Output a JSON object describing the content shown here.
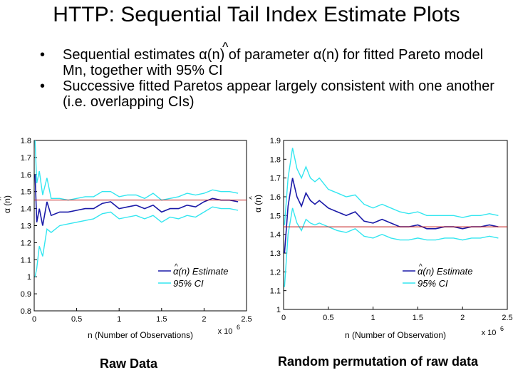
{
  "slide": {
    "title": "HTTP: Sequential Tail Index Estimate Plots",
    "bullets": [
      "Sequential estimates α(n) of parameter α(n) for fitted Pareto model Mn, together with 95% CI",
      "Successive fitted Paretos appear largely consistent with one another  (i.e. overlapping CIs)"
    ],
    "bullet_marker": "•",
    "hat_glyph": "^"
  },
  "captions": {
    "left": "Raw Data",
    "right": "Random permutation of raw data"
  },
  "colors": {
    "estimate": "#1a1aa8",
    "ci": "#33e6f0",
    "reference": "#c01818",
    "axis": "#000000"
  },
  "chart_data": [
    {
      "type": "line",
      "title": "",
      "xlabel": "n (Number of Observations)",
      "ylabel": "α (n)",
      "x_exponent_label": "x 10",
      "x_exponent": "6",
      "xlim": [
        0,
        2.5
      ],
      "ylim": [
        0.8,
        1.8
      ],
      "x_ticks": [
        "0",
        "0.5",
        "1",
        "1.5",
        "2",
        "2.5"
      ],
      "y_ticks": [
        "0.8",
        "0.9",
        "1",
        "1.1",
        "1.2",
        "1.3",
        "1.4",
        "1.5",
        "1.6",
        "1.7",
        "1.8"
      ],
      "reference_line": 1.45,
      "legend": {
        "position": "lower-right",
        "entries": [
          "α(n) Estimate",
          "95% CI"
        ]
      },
      "series": [
        {
          "name": "α(n) Estimate",
          "x": [
            0.01,
            0.03,
            0.06,
            0.1,
            0.15,
            0.2,
            0.3,
            0.4,
            0.5,
            0.6,
            0.7,
            0.8,
            0.9,
            1.0,
            1.1,
            1.2,
            1.3,
            1.4,
            1.5,
            1.6,
            1.7,
            1.8,
            1.9,
            2.0,
            2.1,
            2.2,
            2.3,
            2.4
          ],
          "y": [
            1.6,
            1.32,
            1.4,
            1.3,
            1.44,
            1.36,
            1.38,
            1.38,
            1.39,
            1.4,
            1.4,
            1.43,
            1.44,
            1.4,
            1.41,
            1.42,
            1.4,
            1.42,
            1.38,
            1.4,
            1.4,
            1.42,
            1.41,
            1.44,
            1.46,
            1.45,
            1.45,
            1.44
          ]
        },
        {
          "name": "95% CI",
          "x": [
            0.01,
            0.03,
            0.06,
            0.1,
            0.15,
            0.2,
            0.3,
            0.4,
            0.5,
            0.6,
            0.7,
            0.8,
            0.9,
            1.0,
            1.1,
            1.2,
            1.3,
            1.4,
            1.5,
            1.6,
            1.7,
            1.8,
            1.9,
            2.0,
            2.1,
            2.2,
            2.3,
            2.4
          ],
          "y": [
            1.8,
            1.55,
            1.62,
            1.48,
            1.58,
            1.46,
            1.46,
            1.45,
            1.46,
            1.47,
            1.47,
            1.5,
            1.5,
            1.47,
            1.48,
            1.48,
            1.46,
            1.49,
            1.45,
            1.46,
            1.47,
            1.49,
            1.48,
            1.49,
            1.51,
            1.5,
            1.5,
            1.49
          ]
        },
        {
          "name": "95% CI",
          "x": [
            0.01,
            0.03,
            0.06,
            0.1,
            0.15,
            0.2,
            0.3,
            0.4,
            0.5,
            0.6,
            0.7,
            0.8,
            0.9,
            1.0,
            1.1,
            1.2,
            1.3,
            1.4,
            1.5,
            1.6,
            1.7,
            1.8,
            1.9,
            2.0,
            2.1,
            2.2,
            2.3,
            2.4
          ],
          "y": [
            1.0,
            1.05,
            1.18,
            1.12,
            1.28,
            1.26,
            1.3,
            1.31,
            1.32,
            1.33,
            1.34,
            1.37,
            1.38,
            1.34,
            1.35,
            1.36,
            1.34,
            1.36,
            1.32,
            1.35,
            1.34,
            1.36,
            1.35,
            1.38,
            1.41,
            1.4,
            1.4,
            1.39
          ]
        }
      ]
    },
    {
      "type": "line",
      "title": "",
      "xlabel": "n (Number of Observation)",
      "ylabel": "α (n)",
      "x_exponent_label": "x 10",
      "x_exponent": "6",
      "xlim": [
        0,
        2.5
      ],
      "ylim": [
        1,
        1.9
      ],
      "x_ticks": [
        "0",
        "0.5",
        "1",
        "1.5",
        "2",
        "2.5"
      ],
      "y_ticks": [
        "1",
        "1.1",
        "1.2",
        "1.3",
        "1.4",
        "1.5",
        "1.6",
        "1.7",
        "1.8",
        "1.9"
      ],
      "reference_line": 1.44,
      "legend": {
        "position": "lower-right",
        "entries": [
          "α(n) Estimate",
          "95% CI"
        ]
      },
      "series": [
        {
          "name": "α(n) Estimate",
          "x": [
            0.01,
            0.05,
            0.1,
            0.15,
            0.2,
            0.25,
            0.3,
            0.35,
            0.4,
            0.5,
            0.6,
            0.7,
            0.8,
            0.9,
            1.0,
            1.1,
            1.2,
            1.3,
            1.4,
            1.5,
            1.6,
            1.7,
            1.8,
            1.9,
            2.0,
            2.1,
            2.2,
            2.3,
            2.4
          ],
          "y": [
            1.3,
            1.55,
            1.7,
            1.6,
            1.55,
            1.62,
            1.58,
            1.56,
            1.58,
            1.54,
            1.52,
            1.5,
            1.52,
            1.47,
            1.46,
            1.48,
            1.46,
            1.44,
            1.44,
            1.45,
            1.43,
            1.43,
            1.44,
            1.44,
            1.43,
            1.44,
            1.44,
            1.45,
            1.44
          ]
        },
        {
          "name": "95% CI",
          "x": [
            0.01,
            0.05,
            0.1,
            0.15,
            0.2,
            0.25,
            0.3,
            0.35,
            0.4,
            0.5,
            0.6,
            0.7,
            0.8,
            0.9,
            1.0,
            1.1,
            1.2,
            1.3,
            1.4,
            1.5,
            1.6,
            1.7,
            1.8,
            1.9,
            2.0,
            2.1,
            2.2,
            2.3,
            2.4
          ],
          "y": [
            1.45,
            1.7,
            1.86,
            1.75,
            1.7,
            1.76,
            1.7,
            1.68,
            1.7,
            1.64,
            1.62,
            1.6,
            1.61,
            1.56,
            1.54,
            1.56,
            1.54,
            1.52,
            1.51,
            1.52,
            1.5,
            1.5,
            1.5,
            1.5,
            1.49,
            1.5,
            1.5,
            1.51,
            1.5
          ]
        },
        {
          "name": "95% CI",
          "x": [
            0.01,
            0.05,
            0.1,
            0.15,
            0.2,
            0.25,
            0.3,
            0.35,
            0.4,
            0.5,
            0.6,
            0.7,
            0.8,
            0.9,
            1.0,
            1.1,
            1.2,
            1.3,
            1.4,
            1.5,
            1.6,
            1.7,
            1.8,
            1.9,
            2.0,
            2.1,
            2.2,
            2.3,
            2.4
          ],
          "y": [
            1.12,
            1.4,
            1.54,
            1.46,
            1.42,
            1.48,
            1.46,
            1.45,
            1.46,
            1.44,
            1.42,
            1.41,
            1.43,
            1.39,
            1.38,
            1.4,
            1.38,
            1.37,
            1.37,
            1.38,
            1.37,
            1.37,
            1.38,
            1.38,
            1.37,
            1.38,
            1.38,
            1.39,
            1.38
          ]
        }
      ]
    }
  ]
}
